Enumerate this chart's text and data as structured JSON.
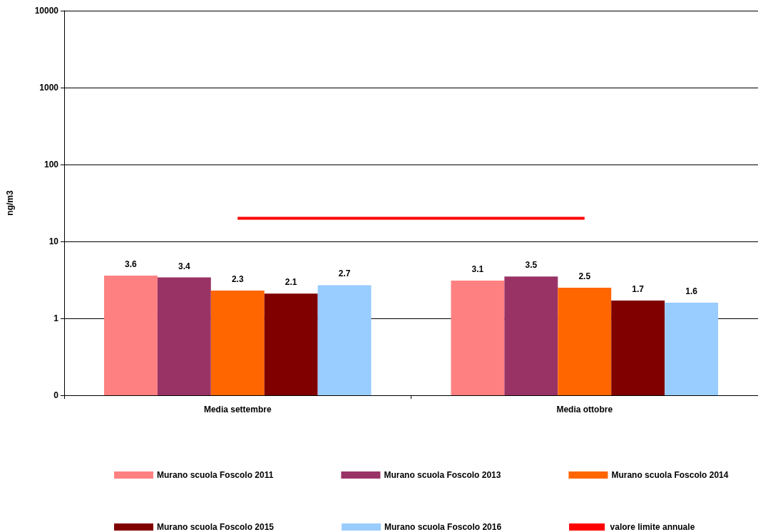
{
  "chart_data": {
    "type": "bar",
    "ylabel": "ng/m3",
    "categories": [
      "Media settembre",
      "Media ottobre"
    ],
    "series": [
      {
        "name": "Murano scuola Foscolo 2011",
        "color": "#ff8080",
        "values": [
          3.6,
          3.1
        ],
        "value_labels": [
          "3.6",
          "3.1"
        ]
      },
      {
        "name": "Murano scuola Foscolo 2013",
        "color": "#993366",
        "values": [
          3.4,
          3.5
        ],
        "value_labels": [
          "3.4",
          "3.5"
        ]
      },
      {
        "name": "Murano scuola Foscolo 2014",
        "color": "#ff6600",
        "values": [
          2.3,
          2.5
        ],
        "value_labels": [
          "2.3",
          "2.5"
        ]
      },
      {
        "name": "Murano scuola Foscolo 2015",
        "color": "#800000",
        "values": [
          2.1,
          1.7
        ],
        "value_labels": [
          "2.1",
          "1.7"
        ]
      },
      {
        "name": "Murano scuola Foscolo 2016",
        "color": "#99ccff",
        "values": [
          2.7,
          1.6
        ],
        "value_labels": [
          "2.7",
          "1.6"
        ]
      },
      {
        "name": "valore limite annuale",
        "type": "line",
        "color": "#ff0000",
        "values": [
          20,
          20
        ]
      }
    ],
    "log": "y",
    "ylim": [
      0.1,
      10000
    ],
    "yticks": [
      {
        "value": 0.1,
        "label": "0"
      },
      1,
      10,
      100,
      1000,
      10000
    ],
    "grid": "y",
    "legend": "bottom",
    "marker": "none"
  }
}
